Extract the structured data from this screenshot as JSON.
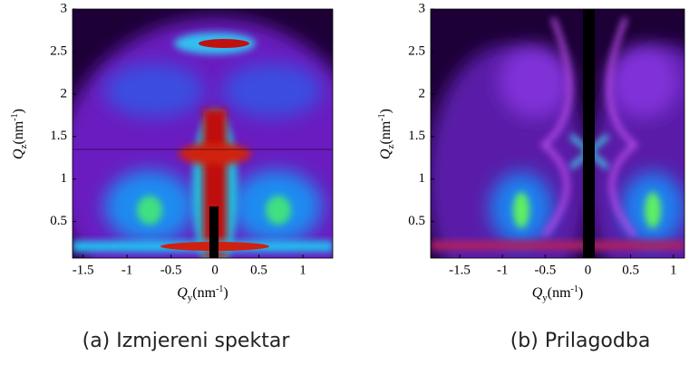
{
  "chart_data": [
    {
      "type": "heatmap",
      "caption": "(a) Izmjereni spektar",
      "xlabel": [
        "Q",
        "y",
        "(nm",
        "-1",
        ")"
      ],
      "ylabel": [
        "Q",
        "z",
        "(nm",
        "-1",
        ")"
      ],
      "xlim": [
        -1.62,
        1.34
      ],
      "ylim": [
        0.07,
        3
      ],
      "xticks": [
        -1.5,
        -1,
        -0.5,
        0,
        0.5,
        1
      ],
      "yticks": [
        0.5,
        1,
        1.5,
        2,
        2.5,
        3
      ]
    },
    {
      "type": "heatmap",
      "caption": "(b) Prilagodba",
      "xlabel": [
        "Q",
        "y",
        "(nm",
        "-1",
        ")"
      ],
      "ylabel": [
        "Q",
        "z",
        "(nm",
        "-1",
        ")"
      ],
      "xlim": [
        -1.84,
        1.13
      ],
      "ylim": [
        0.07,
        3
      ],
      "xticks": [
        -1.5,
        -1,
        -0.5,
        0,
        0.5,
        1
      ],
      "yticks": [
        0.5,
        1,
        1.5,
        2,
        2.5,
        3
      ]
    }
  ]
}
